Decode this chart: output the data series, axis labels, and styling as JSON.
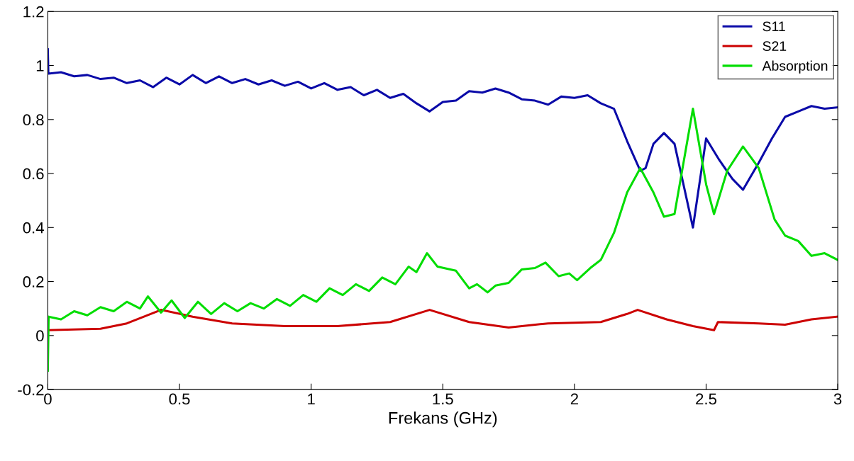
{
  "chart_data": {
    "type": "line",
    "xlabel": "Frekans (GHz)",
    "xlim": [
      0,
      3
    ],
    "xticks": [
      0,
      0.5,
      1,
      1.5,
      2,
      2.5,
      3
    ],
    "ylim": [
      -0.2,
      1.2
    ],
    "yticks": [
      -0.2,
      0,
      0.2,
      0.4,
      0.6,
      0.8,
      1,
      1.2
    ],
    "grid": false,
    "legend": "top right",
    "marker": "none",
    "line_style": "solid",
    "series": [
      {
        "name": "S11",
        "color": "#0a0aa8",
        "x": [
          0,
          0.002,
          0.05,
          0.1,
          0.15,
          0.2,
          0.25,
          0.3,
          0.35,
          0.4,
          0.45,
          0.5,
          0.55,
          0.6,
          0.65,
          0.7,
          0.75,
          0.8,
          0.85,
          0.9,
          0.95,
          1.0,
          1.05,
          1.1,
          1.15,
          1.2,
          1.25,
          1.3,
          1.35,
          1.4,
          1.45,
          1.5,
          1.55,
          1.6,
          1.65,
          1.7,
          1.75,
          1.8,
          1.85,
          1.9,
          1.95,
          2.0,
          2.05,
          2.1,
          2.15,
          2.2,
          2.25,
          2.27,
          2.3,
          2.34,
          2.38,
          2.45,
          2.5,
          2.55,
          2.6,
          2.64,
          2.7,
          2.75,
          2.8,
          2.85,
          2.9,
          2.95,
          3.0
        ],
        "values": [
          1.06,
          0.97,
          0.975,
          0.96,
          0.965,
          0.95,
          0.955,
          0.935,
          0.945,
          0.92,
          0.955,
          0.93,
          0.965,
          0.935,
          0.96,
          0.935,
          0.95,
          0.93,
          0.945,
          0.925,
          0.94,
          0.915,
          0.935,
          0.91,
          0.92,
          0.89,
          0.91,
          0.88,
          0.895,
          0.86,
          0.83,
          0.865,
          0.87,
          0.905,
          0.9,
          0.915,
          0.9,
          0.875,
          0.87,
          0.855,
          0.885,
          0.88,
          0.89,
          0.86,
          0.84,
          0.72,
          0.61,
          0.62,
          0.71,
          0.75,
          0.71,
          0.4,
          0.73,
          0.65,
          0.58,
          0.54,
          0.64,
          0.73,
          0.81,
          0.83,
          0.85,
          0.84,
          0.845
        ]
      },
      {
        "name": "S21",
        "color": "#cc0000",
        "x": [
          0.002,
          0.2,
          0.3,
          0.43,
          0.55,
          0.7,
          0.9,
          1.1,
          1.3,
          1.45,
          1.6,
          1.75,
          1.9,
          2.1,
          2.2,
          2.24,
          2.35,
          2.45,
          2.53,
          2.545,
          2.7,
          2.8,
          2.9,
          3.0
        ],
        "values": [
          0.02,
          0.025,
          0.045,
          0.095,
          0.07,
          0.045,
          0.035,
          0.035,
          0.05,
          0.095,
          0.05,
          0.03,
          0.045,
          0.05,
          0.08,
          0.095,
          0.06,
          0.035,
          0.02,
          0.05,
          0.045,
          0.04,
          0.06,
          0.07
        ]
      },
      {
        "name": "Absorption",
        "color": "#00dd00",
        "x": [
          0,
          0.003,
          0.05,
          0.1,
          0.15,
          0.2,
          0.25,
          0.3,
          0.35,
          0.38,
          0.43,
          0.47,
          0.52,
          0.57,
          0.62,
          0.67,
          0.72,
          0.77,
          0.82,
          0.87,
          0.92,
          0.97,
          1.02,
          1.07,
          1.12,
          1.17,
          1.22,
          1.27,
          1.32,
          1.37,
          1.4,
          1.44,
          1.48,
          1.55,
          1.6,
          1.63,
          1.67,
          1.7,
          1.75,
          1.8,
          1.85,
          1.89,
          1.94,
          1.98,
          2.01,
          2.06,
          2.1,
          2.15,
          2.2,
          2.25,
          2.3,
          2.34,
          2.38,
          2.45,
          2.5,
          2.53,
          2.58,
          2.64,
          2.7,
          2.76,
          2.8,
          2.85,
          2.9,
          2.95,
          3.0
        ],
        "values": [
          -0.13,
          0.07,
          0.06,
          0.09,
          0.075,
          0.105,
          0.09,
          0.125,
          0.1,
          0.145,
          0.085,
          0.13,
          0.065,
          0.125,
          0.08,
          0.12,
          0.09,
          0.12,
          0.1,
          0.135,
          0.11,
          0.15,
          0.125,
          0.175,
          0.15,
          0.19,
          0.165,
          0.215,
          0.19,
          0.255,
          0.235,
          0.305,
          0.255,
          0.24,
          0.175,
          0.19,
          0.16,
          0.185,
          0.195,
          0.245,
          0.25,
          0.27,
          0.22,
          0.23,
          0.205,
          0.25,
          0.28,
          0.38,
          0.53,
          0.62,
          0.53,
          0.44,
          0.45,
          0.84,
          0.56,
          0.45,
          0.61,
          0.7,
          0.62,
          0.43,
          0.37,
          0.35,
          0.295,
          0.305,
          0.28
        ]
      }
    ]
  }
}
